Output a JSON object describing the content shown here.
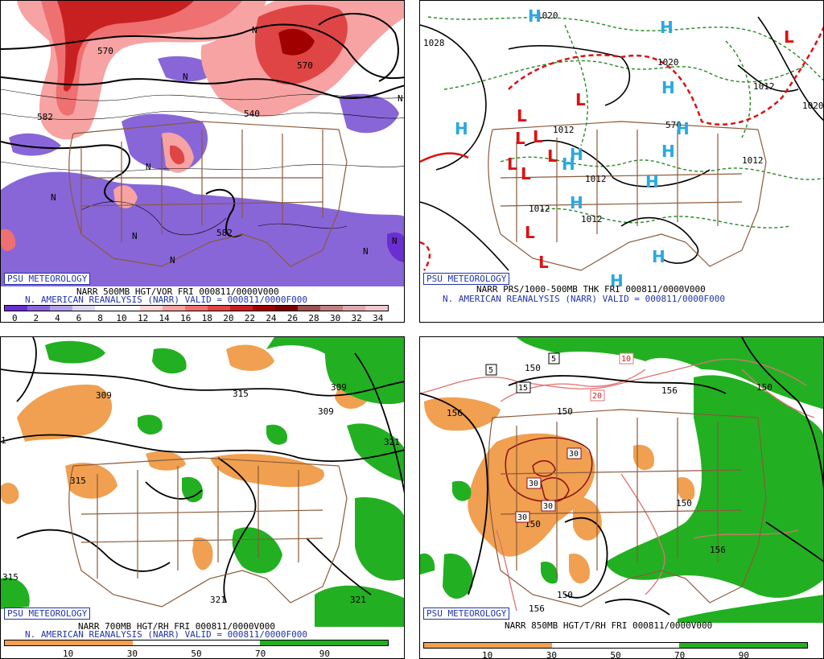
{
  "panels": [
    {
      "credit": "PSU METEOROLOGY",
      "line1": "NARR 500MB HGT/VOR FRI 000811/0000V000",
      "line2": "N. AMERICAN REANALYSIS (NARR) VALID = 000811/0000F000",
      "legend_ticks": [
        "0",
        "2",
        "4",
        "6",
        "8",
        "10",
        "12",
        "14",
        "16",
        "18",
        "20",
        "22",
        "24",
        "26",
        "28",
        "30",
        "32",
        "34"
      ],
      "legend_colors": [
        "#6a2fd0",
        "#8a66d8",
        "#b3a0e6",
        "#ddd6f3",
        "#ffffff",
        "#ffffff",
        "#ffd6d6",
        "#f7a3a3",
        "#ee7070",
        "#e04545",
        "#c82020",
        "#a00000",
        "#7a0000",
        "#a05050",
        "#c08080",
        "#e0a8b0",
        "#f0c8d0"
      ],
      "contour_labels": [
        "570",
        "570",
        "582",
        "540",
        "582"
      ],
      "symbols": [
        "N",
        "N",
        "N",
        "N",
        "N",
        "N",
        "N",
        "N",
        "N"
      ]
    },
    {
      "credit": "PSU METEOROLOGY",
      "line1": "NARR PRS/1000-500MB THK FRI 000811/0000V000",
      "line2": "N. AMERICAN REANALYSIS (NARR) VALID = 000811/0000F000",
      "contour_labels": [
        "1028",
        "1020",
        "1020",
        "1012",
        "1012",
        "1012",
        "1012",
        "1012",
        "1012",
        "1020",
        "570"
      ],
      "highs": [
        "H",
        "H",
        "H",
        "H",
        "H",
        "H",
        "H",
        "H",
        "H",
        "H",
        "H",
        "H"
      ],
      "lows": [
        "L",
        "L",
        "L",
        "L",
        "L",
        "L",
        "L",
        "L",
        "L",
        "L"
      ]
    },
    {
      "credit": "PSU METEOROLOGY",
      "line1": "NARR 700MB HGT/RH FRI 000811/0000V000",
      "line2": "N. AMERICAN REANALYSIS (NARR) VALID = 000811/0000F000",
      "legend_ticks": [
        "10",
        "30",
        "50",
        "70",
        "90"
      ],
      "legend_colors": [
        "#f0a050",
        "#f0a050",
        "#ffffff",
        "#ffffff",
        "#22b022",
        "#22b022"
      ],
      "contour_labels": [
        "309",
        "315",
        "309",
        "309",
        "315",
        "321",
        "321",
        "321",
        "315",
        "1"
      ]
    },
    {
      "credit": "PSU METEOROLOGY",
      "line1": "NARR 850MB HGT/T/RH FRI 000811/0000V000",
      "line2": "",
      "legend_ticks": [
        "10",
        "30",
        "50",
        "70",
        "90"
      ],
      "legend_colors": [
        "#f0a050",
        "#f0a050",
        "#ffffff",
        "#ffffff",
        "#22b022",
        "#22b022"
      ],
      "contour_labels": [
        "156",
        "150",
        "150",
        "150",
        "156",
        "150",
        "150",
        "156",
        "150",
        "156"
      ],
      "temp_boxes": [
        "5",
        "5",
        "15",
        "10",
        "20",
        "30",
        "30",
        "30",
        "30"
      ]
    }
  ]
}
